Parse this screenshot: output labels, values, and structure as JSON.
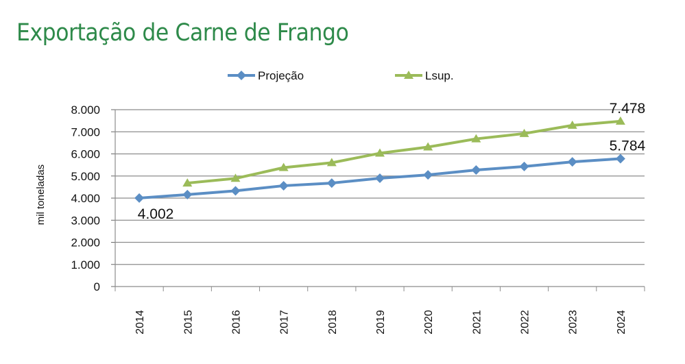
{
  "title": "Exportação de Carne de Frango",
  "colors": {
    "projecao": "#5b8ec4",
    "lsup": "#9bbb59",
    "title": "#2e8a4a"
  },
  "chart_data": {
    "type": "line",
    "title": "Exportação de Carne de Frango",
    "xlabel": "",
    "ylabel": "mil toneladas",
    "categories": [
      "2014",
      "2015",
      "2016",
      "2017",
      "2018",
      "2019",
      "2020",
      "2021",
      "2022",
      "2023",
      "2024"
    ],
    "ylim": [
      0,
      8000
    ],
    "yticks": [
      0,
      1000,
      2000,
      3000,
      4000,
      5000,
      6000,
      7000,
      8000
    ],
    "ytick_labels": [
      "0",
      "1.000",
      "2.000",
      "3.000",
      "4.000",
      "5.000",
      "6.000",
      "7.000",
      "8.000"
    ],
    "grid": true,
    "legend_position": "top",
    "series": [
      {
        "name": "Projeção",
        "marker": "diamond",
        "values": [
          4002,
          4160,
          4330,
          4560,
          4680,
          4900,
          5050,
          5270,
          5430,
          5640,
          5784
        ]
      },
      {
        "name": "Lsup.",
        "marker": "triangle",
        "values": [
          null,
          4680,
          4890,
          5380,
          5600,
          6030,
          6310,
          6680,
          6920,
          7290,
          7478
        ]
      }
    ],
    "data_labels": [
      {
        "text": "4.002",
        "series": 0,
        "index": 0,
        "position": "below"
      },
      {
        "text": "5.784",
        "series": 0,
        "index": 10,
        "position": "above"
      },
      {
        "text": "7.478",
        "series": 1,
        "index": 10,
        "position": "above"
      }
    ]
  }
}
